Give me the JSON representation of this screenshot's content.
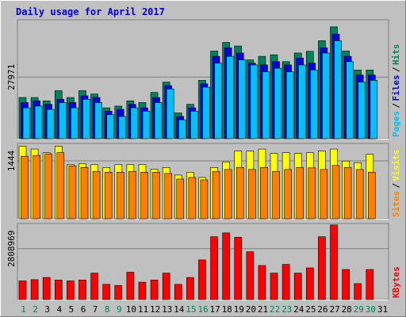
{
  "chart_data": {
    "type": "bar",
    "title": "Daily usage for April 2017",
    "days": [
      1,
      2,
      3,
      4,
      5,
      6,
      7,
      8,
      9,
      10,
      11,
      12,
      13,
      14,
      15,
      16,
      17,
      18,
      19,
      20,
      21,
      22,
      23,
      24,
      25,
      26,
      27,
      28,
      29,
      30,
      31
    ],
    "weekend_days": [
      1,
      2,
      8,
      9,
      15,
      16,
      22,
      23,
      29,
      30
    ],
    "colors": {
      "background": "#c0c0c0",
      "title": "#0000cc",
      "hits": "#00805c",
      "files": "#0000e0",
      "pages": "#00c0ff",
      "visits": "#ffff00",
      "sites": "#ff8000",
      "kbytes": "#ff0000",
      "weekend_label": "#00805c",
      "weekday_label": "#000000"
    },
    "panels": [
      {
        "id": "hits",
        "axis_label": "27971",
        "axis_value": 27971,
        "legend": [
          "Pages",
          "Files",
          "Hits"
        ],
        "legend_colors": [
          "#00c0ff",
          "#0000e0",
          "#00805c"
        ],
        "series": [
          {
            "name": "Hits",
            "values": [
              18700,
              18700,
              17200,
              21800,
              18700,
              21800,
              20300,
              14000,
              14800,
              17200,
              16400,
              21000,
              25700,
              11700,
              15600,
              26500,
              39800,
              43700,
              42100,
              35800,
              37400,
              38100,
              35000,
              38900,
              39700,
              44500,
              50800,
              39800,
              31200,
              31200,
              null
            ]
          },
          {
            "name": "Files",
            "values": [
              16400,
              17200,
              15600,
              17900,
              16400,
              19500,
              18700,
              12500,
              13300,
              15600,
              14000,
              18700,
              24100,
              10100,
              14000,
              24900,
              37400,
              41300,
              38900,
              34300,
              33500,
              35000,
              33500,
              36600,
              34300,
              41300,
              47500,
              37400,
              28900,
              28900,
              null
            ]
          },
          {
            "name": "Pages",
            "values": [
              14000,
              14800,
              13300,
              16400,
              14000,
              17900,
              16400,
              10900,
              10100,
              14000,
              12500,
              16400,
              22600,
              8600,
              12500,
              23400,
              34300,
              37400,
              35800,
              33500,
              30400,
              32000,
              30400,
              33500,
              31200,
              38900,
              44500,
              35000,
              25700,
              26500,
              null
            ]
          }
        ],
        "ymax": 54000
      },
      {
        "id": "visits",
        "axis_label": "1444",
        "axis_value": 1444,
        "legend": [
          "Sites",
          "Visits"
        ],
        "legend_colors": [
          "#ff8000",
          "#ffff00"
        ],
        "series": [
          {
            "name": "Visits",
            "values": [
              1810,
              1740,
              1650,
              1810,
              1350,
              1370,
              1350,
              1280,
              1350,
              1350,
              1350,
              1240,
              1280,
              1090,
              1160,
              1030,
              1280,
              1420,
              1690,
              1690,
              1740,
              1630,
              1650,
              1630,
              1650,
              1690,
              1740,
              1440,
              1400,
              1610,
              null
            ]
          },
          {
            "name": "Sites",
            "values": [
              1560,
              1580,
              1620,
              1650,
              1320,
              1280,
              1180,
              1160,
              1160,
              1180,
              1160,
              1160,
              1130,
              990,
              1030,
              970,
              1180,
              1230,
              1280,
              1230,
              1280,
              1180,
              1230,
              1280,
              1270,
              1230,
              1330,
              1280,
              1230,
              1160,
              null
            ]
          }
        ],
        "ymax": 1880
      },
      {
        "id": "kbytes",
        "axis_label": "2808969",
        "axis_value": 2808969,
        "legend": [
          "KBytes"
        ],
        "legend_colors": [
          "#ff0000"
        ],
        "series": [
          {
            "name": "KBytes",
            "values": [
              1030000,
              1100000,
              1220000,
              1080000,
              1030000,
              1080000,
              1460000,
              840000,
              780000,
              1510000,
              960000,
              1080000,
              1460000,
              840000,
              1220000,
              2190000,
              3470000,
              3680000,
              3440000,
              2640000,
              1880000,
              1460000,
              1940000,
              1460000,
              1750000,
              3470000,
              4120000,
              1660000,
              880000,
              1660000,
              null
            ]
          }
        ],
        "ymax": 4200000
      }
    ]
  }
}
